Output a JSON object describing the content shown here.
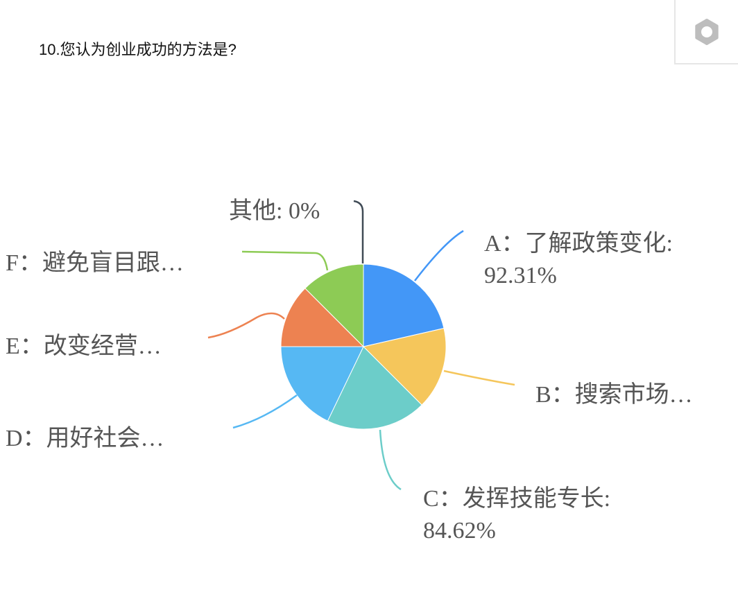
{
  "question": {
    "title": "10.您认为创业成功的方法是?"
  },
  "toolbar": {
    "settings_icon": "gear-icon"
  },
  "chart_data": {
    "type": "pie",
    "title": "",
    "start_angle": "top",
    "direction": "clockwise",
    "slices": [
      {
        "label": "A：了解政策变化",
        "display": "A：了解政策变化:",
        "value": 92.31,
        "value_text": "92.31%",
        "color": "#4397f7"
      },
      {
        "label": "B：搜索市场…",
        "display": "B：搜索市场…",
        "value": 69.23,
        "value_text": "",
        "color": "#f5c65b"
      },
      {
        "label": "C：发挥技能专长",
        "display": "C：发挥技能专长:",
        "value": 84.62,
        "value_text": "84.62%",
        "color": "#6ccdc9"
      },
      {
        "label": "D：用好社会…",
        "display": "D：用好社会…",
        "value": 76.92,
        "value_text": "",
        "color": "#56b8f3"
      },
      {
        "label": "E：改变经营…",
        "display": "E：改变经营…",
        "value": 53.85,
        "value_text": "",
        "color": "#ed8251"
      },
      {
        "label": "F：避免盲目跟…",
        "display": "F：避免盲目跟…",
        "value": 53.85,
        "value_text": "",
        "color": "#8dcb55"
      },
      {
        "label": "其他",
        "display": "其他: 0%",
        "value": 0,
        "value_text": "",
        "color": "#3f4a55"
      }
    ]
  }
}
